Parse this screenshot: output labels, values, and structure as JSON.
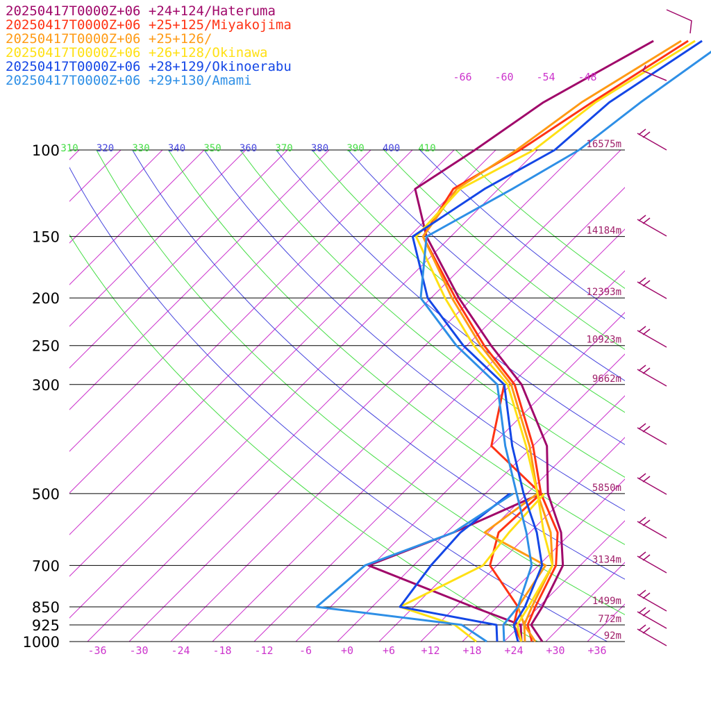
{
  "legend": [
    {
      "label": "20250417T0000Z+06 +24+124/Hateruma",
      "color": "#a0086a"
    },
    {
      "label": "20250417T0000Z+06 +25+125/Miyakojima",
      "color": "#ff3314"
    },
    {
      "label": "20250417T0000Z+06 +25+126/",
      "color": "#ff9a14"
    },
    {
      "label": "20250417T0000Z+06 +26+128/Okinawa",
      "color": "#ffe014"
    },
    {
      "label": "20250417T0000Z+06 +28+129/Okinoerabu",
      "color": "#1447e6"
    },
    {
      "label": "20250417T0000Z+06 +29+130/Amami",
      "color": "#2e8fe6"
    }
  ],
  "chart_data": {
    "type": "line",
    "title": "",
    "xlabel": "",
    "ylabel": "",
    "x_ticks": [
      "-36",
      "-30",
      "-24",
      "-18",
      "-12",
      "-6",
      "+0",
      "+6",
      "+12",
      "+18",
      "+24",
      "+30",
      "+36"
    ],
    "pressure_levels": [
      {
        "label": "100",
        "p": 100,
        "height": "16575m"
      },
      {
        "label": "150",
        "p": 150,
        "height": "14184m"
      },
      {
        "label": "200",
        "p": 200,
        "height": "12393m"
      },
      {
        "label": "250",
        "p": 250,
        "height": "10923m"
      },
      {
        "label": "300",
        "p": 300,
        "height": "9662m"
      },
      {
        "label": "500",
        "p": 500,
        "height": "5850m"
      },
      {
        "label": "700",
        "p": 700,
        "height": "3134m"
      },
      {
        "label": "850",
        "p": 850,
        "height": "1499m"
      },
      {
        "label": "925",
        "p": 925,
        "height": "772m"
      },
      {
        "label": "1000",
        "p": 1000,
        "height": "92m"
      }
    ],
    "theta_labels": [
      "310",
      "320",
      "330",
      "340",
      "350",
      "360",
      "370",
      "380",
      "390",
      "400",
      "410"
    ],
    "mixing_labels": [
      "-66",
      "-60",
      "-54",
      "-48"
    ],
    "series": [
      {
        "name": "Hateruma",
        "temperature": [
          [
            1000,
            27.5
          ],
          [
            925,
            23.5
          ],
          [
            850,
            22.5
          ],
          [
            700,
            19.5
          ],
          [
            600,
            14.5
          ],
          [
            500,
            7.0
          ],
          [
            400,
            0.0
          ],
          [
            300,
            -12.5
          ],
          [
            250,
            -22.5
          ],
          [
            200,
            -34.0
          ],
          [
            150,
            -47.5
          ],
          [
            120,
            -56.0
          ],
          [
            100,
            -53.0
          ],
          [
            80,
            -50.0
          ],
          [
            60,
            -43.0
          ]
        ],
        "dewpoint": [
          [
            1000,
            24.5
          ],
          [
            925,
            22.0
          ],
          [
            850,
            12.5
          ],
          [
            700,
            -8.5
          ],
          [
            600,
            -1.0
          ],
          [
            500,
            6.0
          ]
        ]
      },
      {
        "name": "Miyakojima",
        "temperature": [
          [
            1000,
            26.0
          ],
          [
            925,
            23.0
          ],
          [
            850,
            21.5
          ],
          [
            700,
            18.5
          ],
          [
            600,
            14.0
          ],
          [
            500,
            6.0
          ],
          [
            400,
            -2.0
          ],
          [
            300,
            -13.5
          ],
          [
            250,
            -23.5
          ],
          [
            200,
            -34.5
          ],
          [
            150,
            -48.0
          ],
          [
            120,
            -50.5
          ],
          [
            100,
            -46.5
          ],
          [
            80,
            -43.0
          ],
          [
            60,
            -38.0
          ]
        ],
        "dewpoint": [
          [
            1000,
            24.5
          ],
          [
            925,
            21.0
          ],
          [
            850,
            19.0
          ],
          [
            700,
            9.0
          ],
          [
            600,
            5.5
          ],
          [
            500,
            6.0
          ],
          [
            400,
            -8.0
          ],
          [
            300,
            -15.0
          ]
        ]
      },
      {
        "name": "",
        "temperature": [
          [
            1000,
            26.5
          ],
          [
            925,
            22.5
          ],
          [
            850,
            21.0
          ],
          [
            700,
            18.0
          ],
          [
            600,
            13.0
          ],
          [
            500,
            5.5
          ],
          [
            400,
            -2.5
          ],
          [
            300,
            -14.0
          ],
          [
            250,
            -24.0
          ],
          [
            200,
            -35.0
          ],
          [
            150,
            -48.0
          ],
          [
            120,
            -50.0
          ],
          [
            100,
            -47.0
          ],
          [
            80,
            -44.5
          ],
          [
            60,
            -39.0
          ]
        ],
        "dewpoint": [
          [
            1000,
            25.0
          ],
          [
            925,
            22.5
          ],
          [
            850,
            19.0
          ],
          [
            700,
            17.0
          ],
          [
            600,
            3.5
          ],
          [
            500,
            5.5
          ]
        ]
      },
      {
        "name": "Okinawa",
        "temperature": [
          [
            1000,
            24.5
          ],
          [
            925,
            21.5
          ],
          [
            850,
            20.5
          ],
          [
            700,
            18.0
          ],
          [
            600,
            12.0
          ],
          [
            500,
            5.5
          ],
          [
            400,
            -3.0
          ],
          [
            300,
            -14.5
          ],
          [
            250,
            -25.0
          ],
          [
            200,
            -36.0
          ],
          [
            150,
            -49.0
          ],
          [
            120,
            -49.5
          ],
          [
            100,
            -44.5
          ],
          [
            80,
            -42.5
          ],
          [
            60,
            -37.0
          ]
        ],
        "dewpoint": [
          [
            1000,
            18.0
          ],
          [
            925,
            12.5
          ],
          [
            850,
            2.0
          ],
          [
            700,
            8.0
          ],
          [
            600,
            7.0
          ],
          [
            500,
            6.5
          ]
        ]
      },
      {
        "name": "Okinoerabu",
        "temperature": [
          [
            1000,
            24.0
          ],
          [
            925,
            21.0
          ],
          [
            850,
            20.0
          ],
          [
            700,
            16.5
          ],
          [
            600,
            11.0
          ],
          [
            500,
            3.5
          ],
          [
            400,
            -5.0
          ],
          [
            300,
            -15.0
          ],
          [
            250,
            -26.5
          ],
          [
            200,
            -38.5
          ],
          [
            150,
            -49.5
          ],
          [
            120,
            -46.0
          ],
          [
            100,
            -41.5
          ],
          [
            80,
            -40.5
          ],
          [
            60,
            -36.0
          ]
        ],
        "dewpoint": [
          [
            1000,
            21.0
          ],
          [
            925,
            18.5
          ],
          [
            850,
            2.0
          ],
          [
            700,
            0.5
          ],
          [
            600,
            0.0
          ],
          [
            500,
            1.5
          ]
        ]
      },
      {
        "name": "Amami",
        "temperature": [
          [
            1000,
            22.0
          ],
          [
            925,
            19.5
          ],
          [
            850,
            19.0
          ],
          [
            700,
            15.0
          ],
          [
            600,
            9.5
          ],
          [
            500,
            2.5
          ],
          [
            400,
            -6.0
          ],
          [
            300,
            -16.0
          ],
          [
            250,
            -27.5
          ],
          [
            200,
            -39.5
          ],
          [
            150,
            -47.5
          ],
          [
            120,
            -42.0
          ],
          [
            100,
            -38.0
          ],
          [
            80,
            -36.0
          ],
          [
            60,
            -32.5
          ]
        ],
        "dewpoint": [
          [
            1000,
            19.5
          ],
          [
            925,
            13.5
          ],
          [
            850,
            -10.0
          ],
          [
            700,
            -9.0
          ],
          [
            600,
            -1.0
          ],
          [
            500,
            2.0
          ]
        ]
      }
    ]
  }
}
